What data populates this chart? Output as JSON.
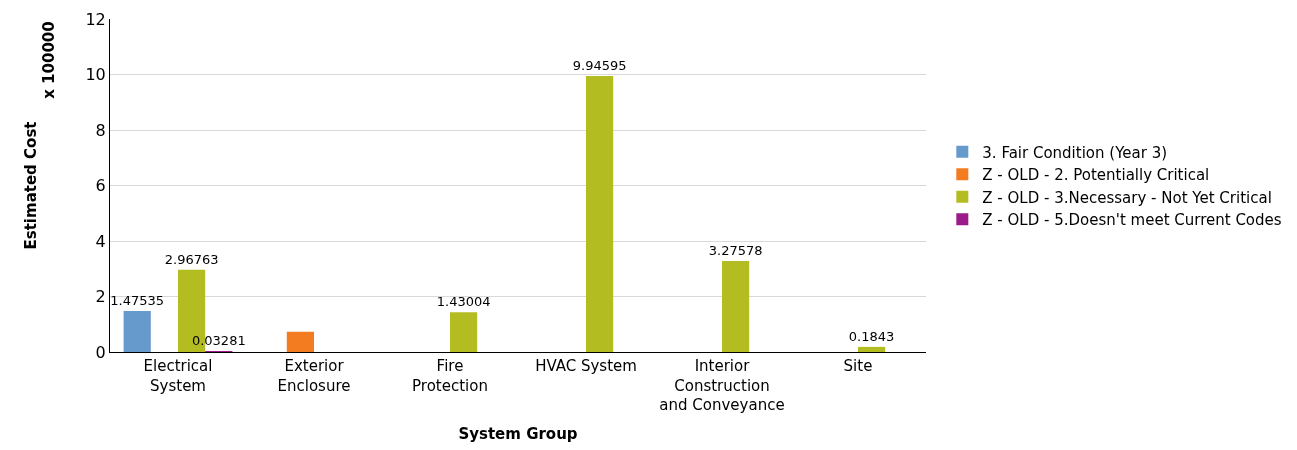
{
  "chart_data": {
    "type": "bar",
    "xlabel": "System Group",
    "ylabel": "Estimated Cost",
    "annotations": [
      "x 100000"
    ],
    "categories": [
      "Electrical System",
      "Exterior Enclosure",
      "Fire Protection",
      "HVAC System",
      "Interior Construction and Conveyance",
      "Site"
    ],
    "series": [
      {
        "name": "3. Fair Condition (Year 3)",
        "color": "#6699cc",
        "values": [
          1.47535,
          null,
          null,
          null,
          null,
          null
        ],
        "value_labels": [
          "1.47535",
          null,
          null,
          null,
          null,
          null
        ]
      },
      {
        "name": "Z - OLD - 2. Potentially Critical",
        "color": "#f47c20",
        "values": [
          null,
          0.73,
          null,
          null,
          null,
          null
        ],
        "value_labels": [
          null,
          null,
          null,
          null,
          null,
          null
        ]
      },
      {
        "name": "Z - OLD - 3.Necessary - Not Yet Critical",
        "color": "#b3bc20",
        "values": [
          2.96763,
          null,
          1.43004,
          9.94595,
          3.27578,
          0.1843
        ],
        "value_labels": [
          "2.96763",
          null,
          "1.43004",
          "9.94595",
          "3.27578",
          "0.1843"
        ]
      },
      {
        "name": "Z - OLD - 5.Doesn't meet Current Codes",
        "color": "#9b1b8a",
        "values": [
          0.03281,
          null,
          null,
          null,
          null,
          null
        ],
        "value_labels": [
          "0.03281",
          null,
          null,
          null,
          null,
          null
        ]
      }
    ],
    "ylim": [
      0,
      12
    ],
    "yticks": [
      0,
      2,
      4,
      6,
      8,
      10,
      12
    ],
    "grid": "y",
    "legend": "right"
  }
}
